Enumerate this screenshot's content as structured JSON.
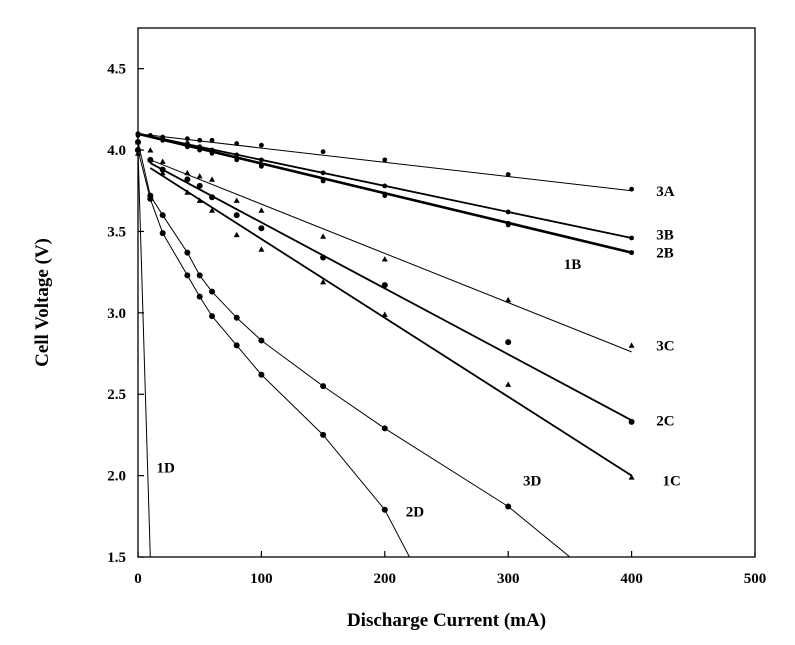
{
  "chart_data": {
    "type": "line",
    "title": "",
    "xlabel": "Discharge Current (mA)",
    "ylabel": "Cell Voltage (V)",
    "xlim": [
      0,
      500
    ],
    "ylim": [
      1.5,
      4.75
    ],
    "xticks": [
      0,
      100,
      200,
      300,
      400,
      500
    ],
    "yticks": [
      1.5,
      2.0,
      2.5,
      3.0,
      3.5,
      4.0,
      4.5
    ],
    "grid": false,
    "legend": "none",
    "series": [
      {
        "name": "3A",
        "line": [
          [
            0,
            4.1
          ],
          [
            400,
            3.75
          ]
        ],
        "points": [
          [
            0,
            4.1
          ],
          [
            10,
            4.09
          ],
          [
            20,
            4.08
          ],
          [
            40,
            4.07
          ],
          [
            50,
            4.06
          ],
          [
            60,
            4.06
          ],
          [
            80,
            4.04
          ],
          [
            100,
            4.03
          ],
          [
            150,
            3.99
          ],
          [
            200,
            3.94
          ],
          [
            300,
            3.85
          ],
          [
            400,
            3.76
          ]
        ]
      },
      {
        "name": "3B",
        "line": [
          [
            0,
            4.1
          ],
          [
            400,
            3.46
          ]
        ],
        "points": [
          [
            0,
            4.1
          ],
          [
            20,
            4.07
          ],
          [
            40,
            4.04
          ],
          [
            50,
            4.02
          ],
          [
            60,
            4.0
          ],
          [
            80,
            3.97
          ],
          [
            100,
            3.94
          ],
          [
            150,
            3.86
          ],
          [
            200,
            3.78
          ],
          [
            300,
            3.62
          ],
          [
            400,
            3.46
          ]
        ]
      },
      {
        "name": "2B",
        "line": [
          [
            0,
            4.1
          ],
          [
            400,
            3.37
          ]
        ],
        "points": [
          [
            0,
            4.1
          ],
          [
            20,
            4.07
          ],
          [
            40,
            4.03
          ],
          [
            50,
            4.01
          ],
          [
            60,
            3.99
          ],
          [
            80,
            3.95
          ],
          [
            100,
            3.91
          ],
          [
            150,
            3.82
          ],
          [
            200,
            3.73
          ],
          [
            300,
            3.55
          ],
          [
            400,
            3.37
          ]
        ]
      },
      {
        "name": "1B",
        "line": [
          [
            0,
            4.1
          ],
          [
            400,
            3.37
          ]
        ],
        "points": [
          [
            0,
            4.09
          ],
          [
            20,
            4.06
          ],
          [
            40,
            4.02
          ],
          [
            50,
            4.0
          ],
          [
            60,
            3.98
          ],
          [
            80,
            3.94
          ],
          [
            100,
            3.9
          ],
          [
            150,
            3.81
          ],
          [
            200,
            3.72
          ],
          [
            300,
            3.54
          ],
          [
            400,
            3.37
          ]
        ]
      },
      {
        "name": "3C",
        "line": [
          [
            10,
            3.94
          ],
          [
            400,
            2.76
          ]
        ],
        "points": [
          [
            0,
            4.05
          ],
          [
            10,
            3.94
          ],
          [
            20,
            3.93
          ],
          [
            40,
            3.86
          ],
          [
            50,
            3.84
          ],
          [
            60,
            3.82
          ],
          [
            80,
            3.69
          ],
          [
            100,
            3.63
          ],
          [
            150,
            3.47
          ],
          [
            200,
            3.33
          ],
          [
            300,
            3.08
          ],
          [
            400,
            2.8
          ]
        ]
      },
      {
        "name": "2C",
        "line": [
          [
            10,
            3.92
          ],
          [
            400,
            2.34
          ]
        ],
        "points": [
          [
            0,
            4.0
          ],
          [
            10,
            3.94
          ],
          [
            20,
            3.88
          ],
          [
            40,
            3.82
          ],
          [
            50,
            3.78
          ],
          [
            60,
            3.71
          ],
          [
            80,
            3.6
          ],
          [
            100,
            3.52
          ],
          [
            150,
            3.34
          ],
          [
            200,
            3.17
          ],
          [
            300,
            2.82
          ],
          [
            400,
            2.33
          ]
        ]
      },
      {
        "name": "1C",
        "line": [
          [
            10,
            3.89
          ],
          [
            400,
            2.0
          ]
        ],
        "points": [
          [
            0,
            3.98
          ],
          [
            10,
            4.0
          ],
          [
            20,
            3.86
          ],
          [
            40,
            3.74
          ],
          [
            50,
            3.69
          ],
          [
            60,
            3.63
          ],
          [
            80,
            3.48
          ],
          [
            100,
            3.39
          ],
          [
            150,
            3.19
          ],
          [
            200,
            2.99
          ],
          [
            300,
            2.56
          ],
          [
            400,
            1.99
          ]
        ]
      },
      {
        "name": "3D",
        "line": [
          [
            0,
            4.05
          ],
          [
            10,
            3.72
          ],
          [
            20,
            3.6
          ],
          [
            40,
            3.37
          ],
          [
            50,
            3.23
          ],
          [
            60,
            3.13
          ],
          [
            80,
            2.97
          ],
          [
            100,
            2.83
          ],
          [
            150,
            2.55
          ],
          [
            200,
            2.29
          ],
          [
            300,
            1.81
          ],
          [
            350,
            1.5
          ]
        ],
        "points": [
          [
            0,
            4.05
          ],
          [
            10,
            3.72
          ],
          [
            20,
            3.6
          ],
          [
            40,
            3.37
          ],
          [
            50,
            3.23
          ],
          [
            60,
            3.13
          ],
          [
            80,
            2.97
          ],
          [
            100,
            2.83
          ],
          [
            150,
            2.55
          ],
          [
            200,
            2.29
          ],
          [
            300,
            1.81
          ]
        ]
      },
      {
        "name": "2D",
        "line": [
          [
            0,
            4.0
          ],
          [
            10,
            3.7
          ],
          [
            20,
            3.49
          ],
          [
            40,
            3.23
          ],
          [
            50,
            3.1
          ],
          [
            60,
            2.98
          ],
          [
            80,
            2.8
          ],
          [
            100,
            2.62
          ],
          [
            150,
            2.25
          ],
          [
            200,
            1.79
          ],
          [
            220,
            1.5
          ]
        ],
        "points": [
          [
            0,
            4.0
          ],
          [
            10,
            3.7
          ],
          [
            20,
            3.49
          ],
          [
            40,
            3.23
          ],
          [
            50,
            3.1
          ],
          [
            60,
            2.98
          ],
          [
            80,
            2.8
          ],
          [
            100,
            2.62
          ],
          [
            150,
            2.25
          ],
          [
            200,
            1.79
          ]
        ]
      },
      {
        "name": "1D",
        "line": [
          [
            0,
            4.0
          ],
          [
            10,
            1.5
          ]
        ],
        "points": [
          [
            0,
            4.0
          ]
        ]
      }
    ],
    "annotations": [
      {
        "text": "3A",
        "x": 420,
        "y": 3.75
      },
      {
        "text": "3B",
        "x": 420,
        "y": 3.48
      },
      {
        "text": "2B",
        "x": 420,
        "y": 3.37
      },
      {
        "text": "1B",
        "x": 345,
        "y": 3.3
      },
      {
        "text": "3C",
        "x": 420,
        "y": 2.8
      },
      {
        "text": "2C",
        "x": 420,
        "y": 2.34
      },
      {
        "text": "1C",
        "x": 425,
        "y": 1.97
      },
      {
        "text": "3D",
        "x": 312,
        "y": 1.97
      },
      {
        "text": "2D",
        "x": 217,
        "y": 1.78
      },
      {
        "text": "1D",
        "x": 15,
        "y": 2.05
      }
    ]
  }
}
